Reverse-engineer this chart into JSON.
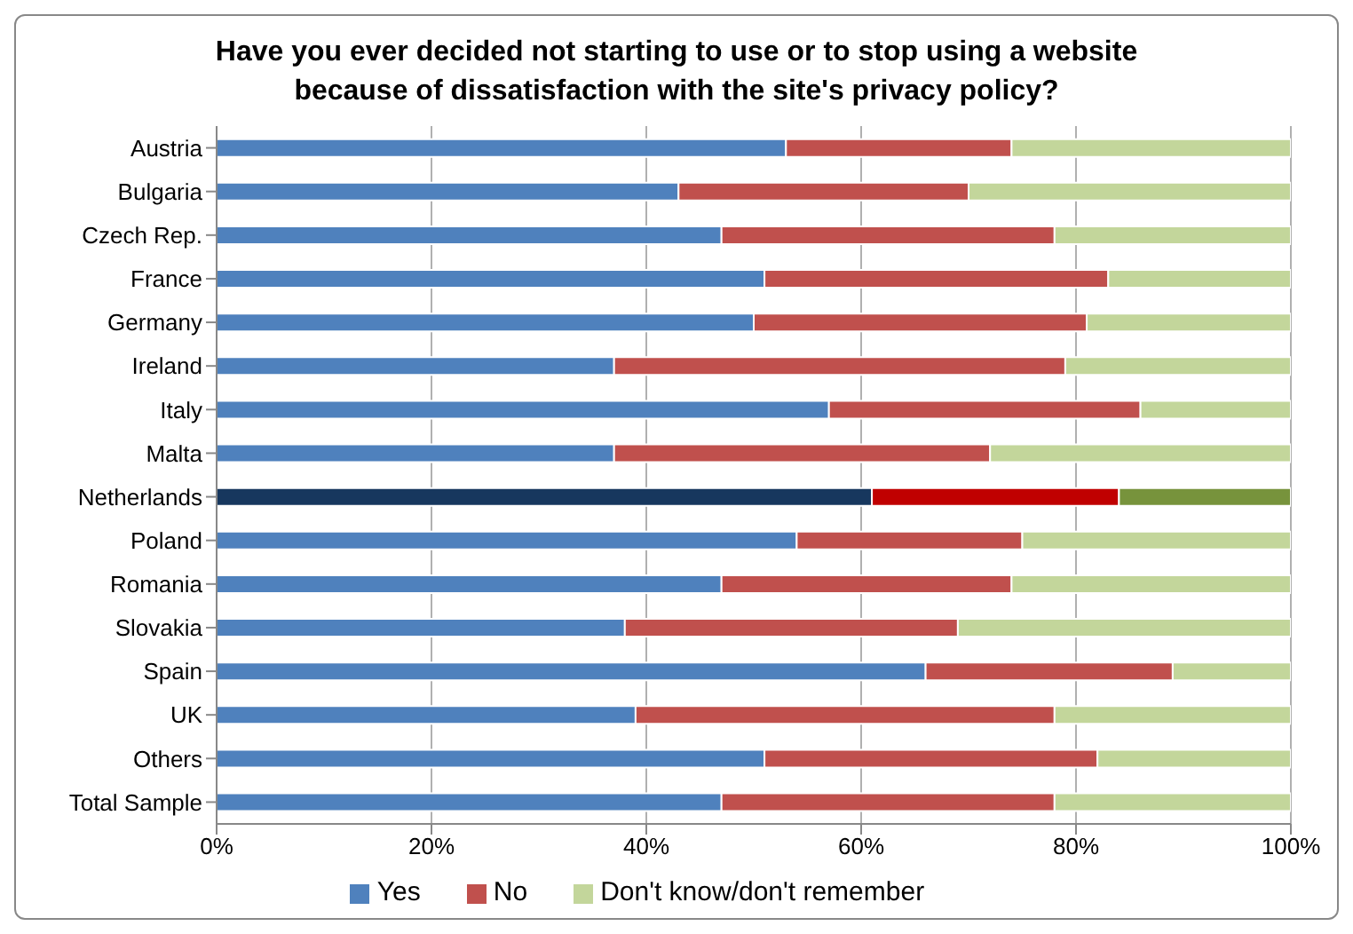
{
  "chart_data": {
    "type": "bar",
    "orientation": "horizontal",
    "stacked": true,
    "title": "Have you ever decided not starting to use or to stop using a website because of dissatisfaction with the site's privacy policy?",
    "categories": [
      "Austria",
      "Bulgaria",
      "Czech Rep.",
      "France",
      "Germany",
      "Ireland",
      "Italy",
      "Malta",
      "Netherlands",
      "Poland",
      "Romania",
      "Slovakia",
      "Spain",
      "UK",
      "Others",
      "Total Sample"
    ],
    "series": [
      {
        "name": "Yes",
        "color": "#4f81bd",
        "colors": [
          "#4f81bd",
          "#4f81bd",
          "#4f81bd",
          "#4f81bd",
          "#4f81bd",
          "#4f81bd",
          "#4f81bd",
          "#4f81bd",
          "#17375e",
          "#4f81bd",
          "#4f81bd",
          "#4f81bd",
          "#4f81bd",
          "#4f81bd",
          "#4f81bd",
          "#4f81bd"
        ],
        "values": [
          53,
          43,
          47,
          51,
          50,
          37,
          57,
          37,
          61,
          54,
          47,
          38,
          66,
          39,
          51,
          47
        ]
      },
      {
        "name": "No",
        "color": "#c0504d",
        "colors": [
          "#c0504d",
          "#c0504d",
          "#c0504d",
          "#c0504d",
          "#c0504d",
          "#c0504d",
          "#c0504d",
          "#c0504d",
          "#c00000",
          "#c0504d",
          "#c0504d",
          "#c0504d",
          "#c0504d",
          "#c0504d",
          "#c0504d",
          "#c0504d"
        ],
        "values": [
          21,
          27,
          31,
          32,
          31,
          42,
          29,
          35,
          23,
          21,
          27,
          31,
          23,
          39,
          31,
          31
        ]
      },
      {
        "name": "Don't know/don't remember",
        "color": "#c3d69b",
        "colors": [
          "#c3d69b",
          "#c3d69b",
          "#c3d69b",
          "#c3d69b",
          "#c3d69b",
          "#c3d69b",
          "#c3d69b",
          "#c3d69b",
          "#77933c",
          "#c3d69b",
          "#c3d69b",
          "#c3d69b",
          "#c3d69b",
          "#c3d69b",
          "#c3d69b",
          "#c3d69b"
        ],
        "values": [
          26,
          30,
          22,
          17,
          19,
          21,
          14,
          28,
          16,
          25,
          26,
          31,
          11,
          22,
          18,
          22
        ]
      }
    ],
    "xlim": [
      0,
      100
    ],
    "xticks": [
      {
        "value": 0,
        "label": "0%"
      },
      {
        "value": 20,
        "label": "20%"
      },
      {
        "value": 40,
        "label": "40%"
      },
      {
        "value": 60,
        "label": "60%"
      },
      {
        "value": 80,
        "label": "80%"
      },
      {
        "value": 100,
        "label": "100%"
      }
    ],
    "grid": "x",
    "legend": "bottom"
  }
}
